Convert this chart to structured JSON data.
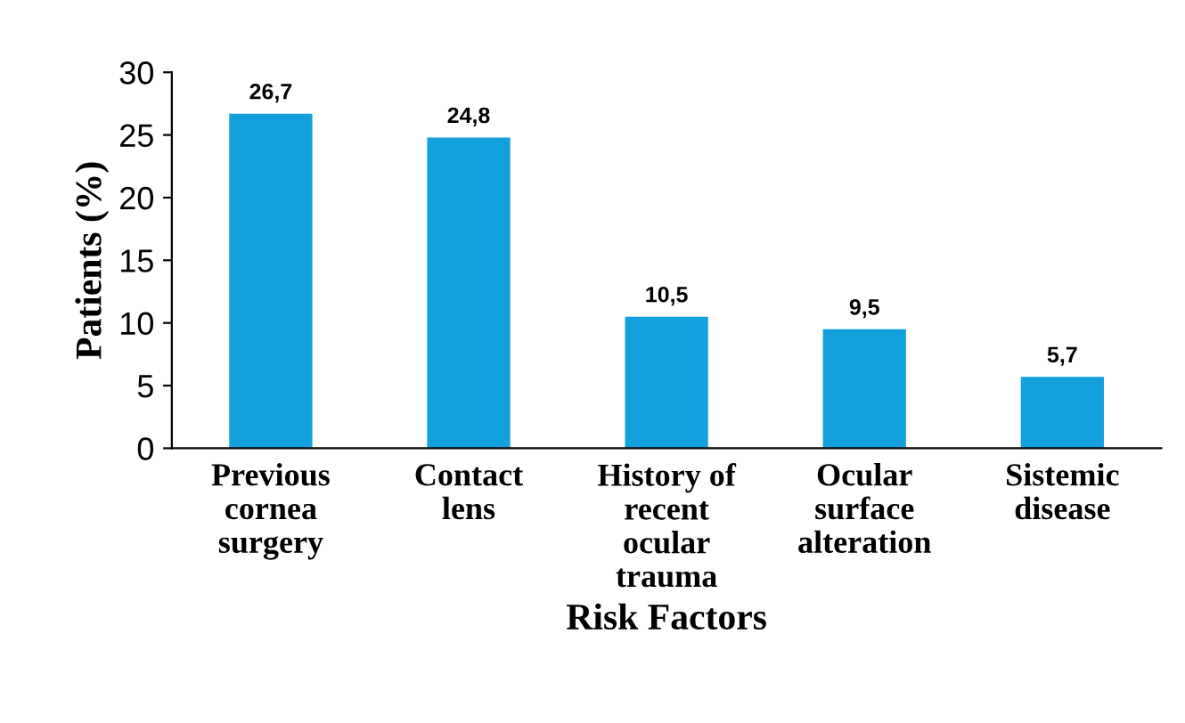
{
  "chart_data": {
    "type": "bar",
    "xlabel": "Risk Factors",
    "ylabel": "Patients (%)",
    "categories": [
      "Previous\ncornea\nsurgery",
      "Contact\nlens",
      "History of\nrecent\nocular\ntrauma",
      "Ocular\nsurface\nalteration",
      "Sistemic\ndisease"
    ],
    "values": [
      26.7,
      24.8,
      10.5,
      9.5,
      5.7
    ],
    "value_labels": [
      "26,7",
      "24,8",
      "10,5",
      "9,5",
      "5,7"
    ],
    "color": "#14a0dc",
    "ylim": [
      0,
      30
    ],
    "yticks": [
      0,
      5,
      10,
      15,
      20,
      25,
      30
    ],
    "grid": false,
    "legend": false
  }
}
